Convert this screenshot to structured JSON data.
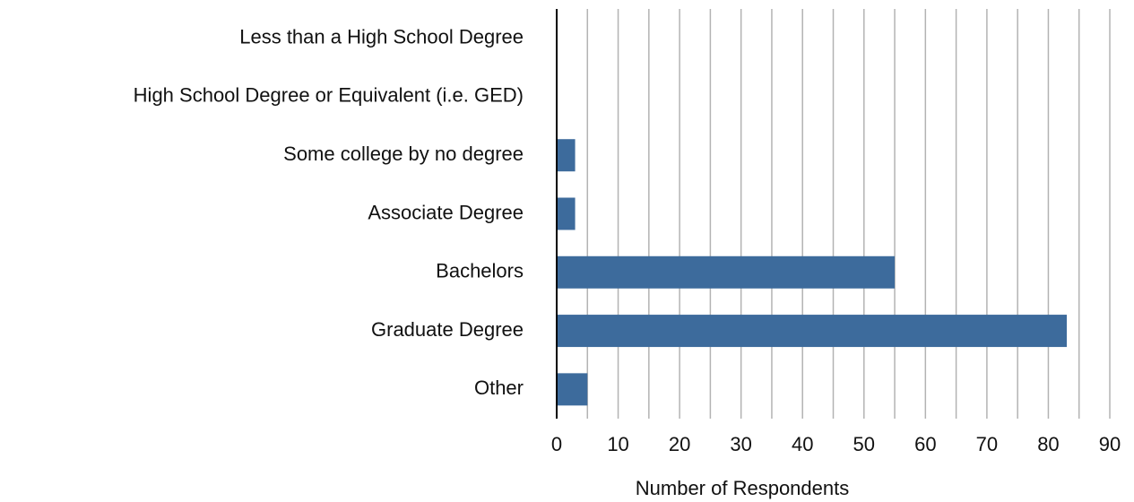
{
  "chart_data": {
    "type": "bar",
    "orientation": "horizontal",
    "x_label": "Number of Respondents",
    "categories": [
      "Less than a High School Degree",
      "High School Degree or Equivalent (i.e. GED)",
      "Some college by no degree",
      "Associate Degree",
      "Bachelors",
      "Graduate Degree",
      "Other"
    ],
    "values": [
      0,
      0,
      3,
      3,
      55,
      83,
      5
    ],
    "color": "#3d6b9c",
    "xlim": [
      0,
      90
    ],
    "xticks": [
      0,
      10,
      20,
      30,
      40,
      50,
      60,
      70,
      80,
      90
    ],
    "minor_xticks": [
      5,
      15,
      25,
      35,
      45,
      55,
      65,
      75,
      85
    ],
    "grid": true
  }
}
